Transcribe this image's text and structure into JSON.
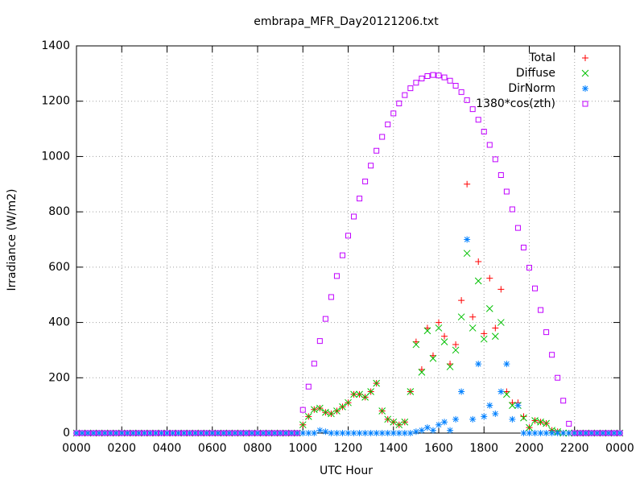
{
  "chart_data": {
    "type": "scatter",
    "title": "embrapa_MFR_Day20121206.txt",
    "x_label": "UTC Hour",
    "y_label": "Irradiance (W/m2)",
    "xlim": [
      0,
      24
    ],
    "ylim": [
      0,
      1400
    ],
    "xticks": [
      {
        "value": 0,
        "label": "0000"
      },
      {
        "value": 2,
        "label": "0200"
      },
      {
        "value": 4,
        "label": "0400"
      },
      {
        "value": 6,
        "label": "0600"
      },
      {
        "value": 8,
        "label": "0800"
      },
      {
        "value": 10,
        "label": "1000"
      },
      {
        "value": 12,
        "label": "1200"
      },
      {
        "value": 14,
        "label": "1400"
      },
      {
        "value": 16,
        "label": "1600"
      },
      {
        "value": 18,
        "label": "1800"
      },
      {
        "value": 20,
        "label": "2000"
      },
      {
        "value": 22,
        "label": "2200"
      },
      {
        "value": 24,
        "label": "0000"
      }
    ],
    "yticks": [
      0,
      200,
      400,
      600,
      800,
      1000,
      1200,
      1400
    ],
    "grid": true,
    "legend": "top-right",
    "x": [
      0,
      0.25,
      0.5,
      0.75,
      1,
      1.25,
      1.5,
      1.75,
      2,
      2.25,
      2.5,
      2.75,
      3,
      3.25,
      3.5,
      3.75,
      4,
      4.25,
      4.5,
      4.75,
      5,
      5.25,
      5.5,
      5.75,
      6,
      6.25,
      6.5,
      6.75,
      7,
      7.25,
      7.5,
      7.75,
      8,
      8.25,
      8.5,
      8.75,
      9,
      9.25,
      9.5,
      9.75,
      10,
      10.25,
      10.5,
      10.75,
      11,
      11.25,
      11.5,
      11.75,
      12,
      12.25,
      12.5,
      12.75,
      13,
      13.25,
      13.5,
      13.75,
      14,
      14.25,
      14.5,
      14.75,
      15,
      15.25,
      15.5,
      15.75,
      16,
      16.25,
      16.5,
      16.75,
      17,
      17.25,
      17.5,
      17.75,
      18,
      18.25,
      18.5,
      18.75,
      19,
      19.25,
      19.5,
      19.75,
      20,
      20.25,
      20.5,
      20.75,
      21,
      21.25,
      21.5,
      21.75,
      22,
      22.25,
      22.5,
      22.75,
      23,
      23.25,
      23.5,
      23.75,
      24
    ],
    "series": [
      {
        "name": "Total",
        "color": "#ff0000",
        "marker": "plus",
        "values": [
          0,
          0,
          0,
          0,
          0,
          0,
          0,
          0,
          0,
          0,
          0,
          0,
          0,
          0,
          0,
          0,
          0,
          0,
          0,
          0,
          0,
          0,
          0,
          0,
          0,
          0,
          0,
          0,
          0,
          0,
          0,
          0,
          0,
          0,
          0,
          0,
          0,
          0,
          0,
          0,
          30,
          60,
          85,
          90,
          75,
          70,
          80,
          95,
          110,
          140,
          140,
          130,
          150,
          180,
          80,
          50,
          40,
          30,
          40,
          150,
          330,
          230,
          380,
          280,
          400,
          350,
          250,
          320,
          480,
          900,
          420,
          620,
          360,
          560,
          380,
          520,
          150,
          110,
          110,
          60,
          20,
          45,
          40,
          35,
          10,
          5,
          0,
          0,
          0,
          0,
          0,
          0,
          0,
          0,
          0,
          0,
          0
        ]
      },
      {
        "name": "Diffuse",
        "color": "#00c000",
        "marker": "cross",
        "values": [
          0,
          0,
          0,
          0,
          0,
          0,
          0,
          0,
          0,
          0,
          0,
          0,
          0,
          0,
          0,
          0,
          0,
          0,
          0,
          0,
          0,
          0,
          0,
          0,
          0,
          0,
          0,
          0,
          0,
          0,
          0,
          0,
          0,
          0,
          0,
          0,
          0,
          0,
          0,
          0,
          30,
          60,
          85,
          90,
          75,
          70,
          80,
          95,
          110,
          140,
          140,
          130,
          150,
          180,
          80,
          50,
          40,
          30,
          40,
          150,
          320,
          220,
          370,
          270,
          380,
          330,
          240,
          300,
          420,
          650,
          380,
          550,
          340,
          450,
          350,
          400,
          140,
          100,
          100,
          55,
          20,
          45,
          40,
          35,
          10,
          5,
          0,
          0,
          0,
          0,
          0,
          0,
          0,
          0,
          0,
          0,
          0
        ]
      },
      {
        "name": "DirNorm",
        "color": "#0080ff",
        "marker": "star",
        "values": [
          0,
          0,
          0,
          0,
          0,
          0,
          0,
          0,
          0,
          0,
          0,
          0,
          0,
          0,
          0,
          0,
          0,
          0,
          0,
          0,
          0,
          0,
          0,
          0,
          0,
          0,
          0,
          0,
          0,
          0,
          0,
          0,
          0,
          0,
          0,
          0,
          0,
          0,
          0,
          0,
          0,
          0,
          0,
          10,
          5,
          0,
          0,
          0,
          0,
          0,
          0,
          0,
          0,
          0,
          0,
          0,
          0,
          0,
          0,
          0,
          5,
          10,
          20,
          10,
          30,
          40,
          10,
          50,
          150,
          700,
          50,
          250,
          60,
          100,
          70,
          150,
          250,
          50,
          100,
          0,
          0,
          0,
          0,
          0,
          0,
          0,
          0,
          0,
          0,
          0,
          0,
          0,
          0,
          0,
          0,
          0,
          0
        ]
      },
      {
        "name": "1380*cos(zth)",
        "color": "#c000ff",
        "marker": "square",
        "values": [
          0,
          0,
          0,
          0,
          0,
          0,
          0,
          0,
          0,
          0,
          0,
          0,
          0,
          0,
          0,
          0,
          0,
          0,
          0,
          0,
          0,
          0,
          0,
          0,
          0,
          0,
          0,
          0,
          0,
          0,
          0,
          0,
          0,
          0,
          0,
          0,
          0,
          0,
          0,
          0,
          84,
          168,
          251,
          333,
          413,
          492,
          568,
          643,
          714,
          783,
          848,
          910,
          967,
          1021,
          1071,
          1116,
          1156,
          1192,
          1222,
          1247,
          1267,
          1282,
          1291,
          1295,
          1293,
          1286,
          1274,
          1256,
          1233,
          1204,
          1171,
          1133,
          1090,
          1042,
          990,
          933,
          873,
          809,
          742,
          671,
          598,
          523,
          445,
          365,
          283,
          200,
          117,
          34,
          0,
          0,
          0,
          0,
          0,
          0,
          0,
          0,
          0
        ]
      }
    ]
  }
}
